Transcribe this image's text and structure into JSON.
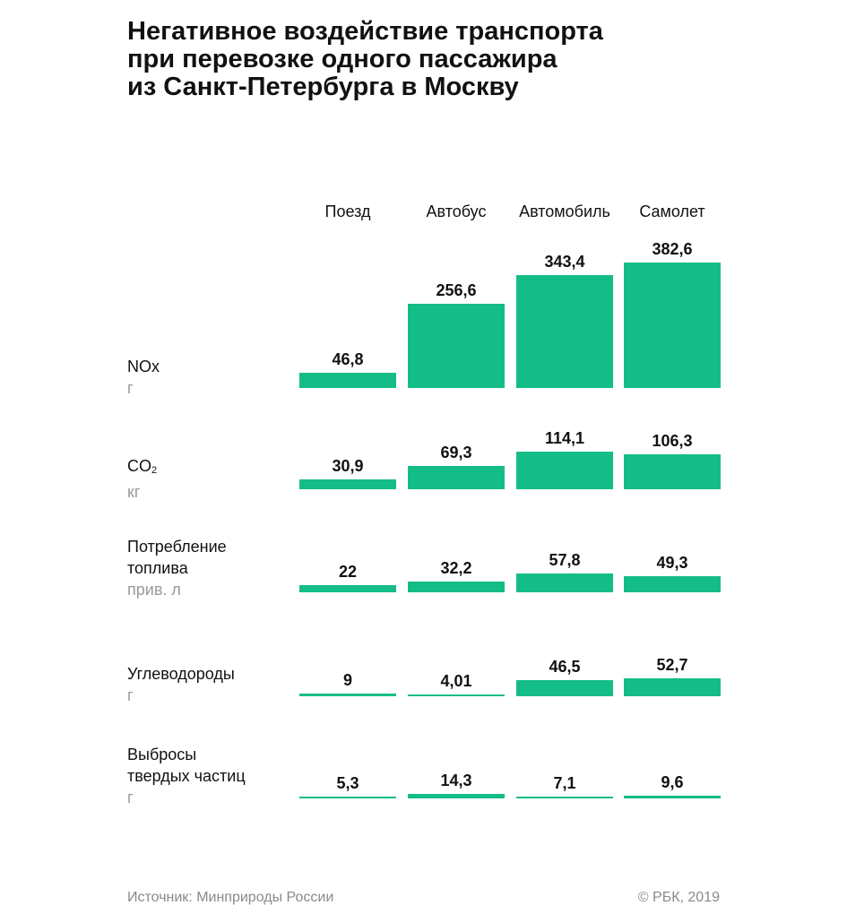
{
  "title": [
    "Негативное воздействие транспорта",
    "при перевозке одного пассажира",
    "из Санкт-Петербурга в Москву"
  ],
  "source": "Источник: Минприроды России",
  "copyright": "© РБК, 2019",
  "colors": {
    "bar": "#14bd87",
    "text": "#111111",
    "unit": "#9a9a9a"
  },
  "chart_data": {
    "type": "bar",
    "categories": [
      "Поезд",
      "Автобус",
      "Автомобиль",
      "Самолет"
    ],
    "rows": [
      {
        "label": [
          "NOx"
        ],
        "unit": "г",
        "values": [
          46.8,
          256.6,
          343.4,
          382.6
        ],
        "display": [
          "46,8",
          "256,6",
          "343,4",
          "382,6"
        ]
      },
      {
        "label": [
          "CO"
        ],
        "label_sub": "2",
        "unit": "кг",
        "values": [
          30.9,
          69.3,
          114.1,
          106.3
        ],
        "display": [
          "30,9",
          "69,3",
          "114,1",
          "106,3"
        ]
      },
      {
        "label": [
          "Потребление",
          "топлива"
        ],
        "unit": "прив. л",
        "values": [
          22,
          32.2,
          57.8,
          49.3
        ],
        "display": [
          "22",
          "32,2",
          "57,8",
          "49,3"
        ]
      },
      {
        "label": [
          "Углеводороды"
        ],
        "unit": "г",
        "values": [
          9,
          4.01,
          46.5,
          52.7
        ],
        "display": [
          "9",
          "4,01",
          "46,5",
          "52,7"
        ]
      },
      {
        "label": [
          "Выбросы",
          "твердых частиц"
        ],
        "unit": "г",
        "values": [
          5.3,
          14.3,
          7.1,
          9.6
        ],
        "display": [
          "5,3",
          "14,3",
          "7,1",
          "9,6"
        ]
      }
    ]
  }
}
